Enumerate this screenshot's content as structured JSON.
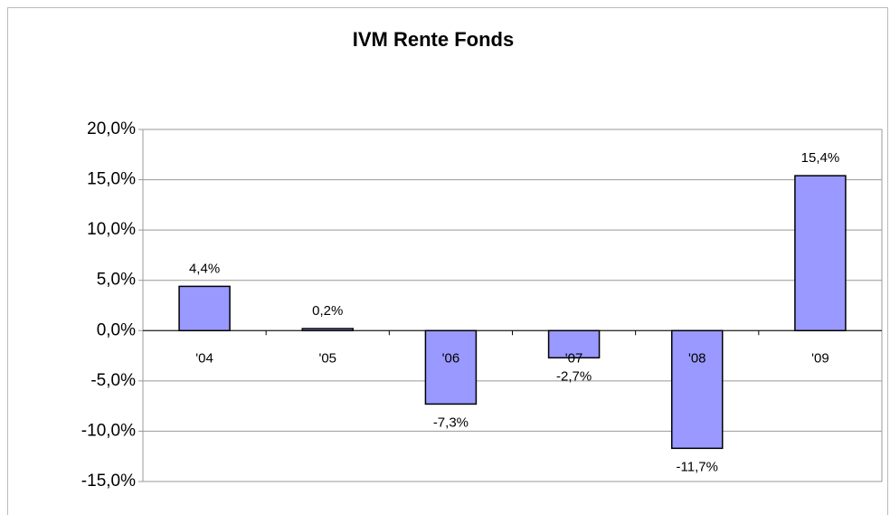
{
  "chart_data": {
    "type": "bar",
    "title": "IVM Rente Fonds",
    "categories": [
      "'04",
      "'05",
      "'06",
      "'07",
      "'08",
      "'09"
    ],
    "values": [
      4.4,
      0.2,
      -7.3,
      -2.7,
      -11.7,
      15.4
    ],
    "value_labels": [
      "4,4%",
      "0,2%",
      "-7,3%",
      "-2,7%",
      "-11,7%",
      "15,4%"
    ],
    "color": "#9999ff",
    "ylim": [
      -15,
      20
    ],
    "yticks": [
      {
        "value": -15,
        "label": "-15,0%"
      },
      {
        "value": -10,
        "label": "-10,0%"
      },
      {
        "value": -5,
        "label": "-5,0%"
      },
      {
        "value": 0,
        "label": "0,0%"
      },
      {
        "value": 5,
        "label": "5,0%"
      },
      {
        "value": 10,
        "label": "10,0%"
      },
      {
        "value": 15,
        "label": "15,0%"
      },
      {
        "value": 20,
        "label": "20,0%"
      }
    ],
    "grid": true
  }
}
